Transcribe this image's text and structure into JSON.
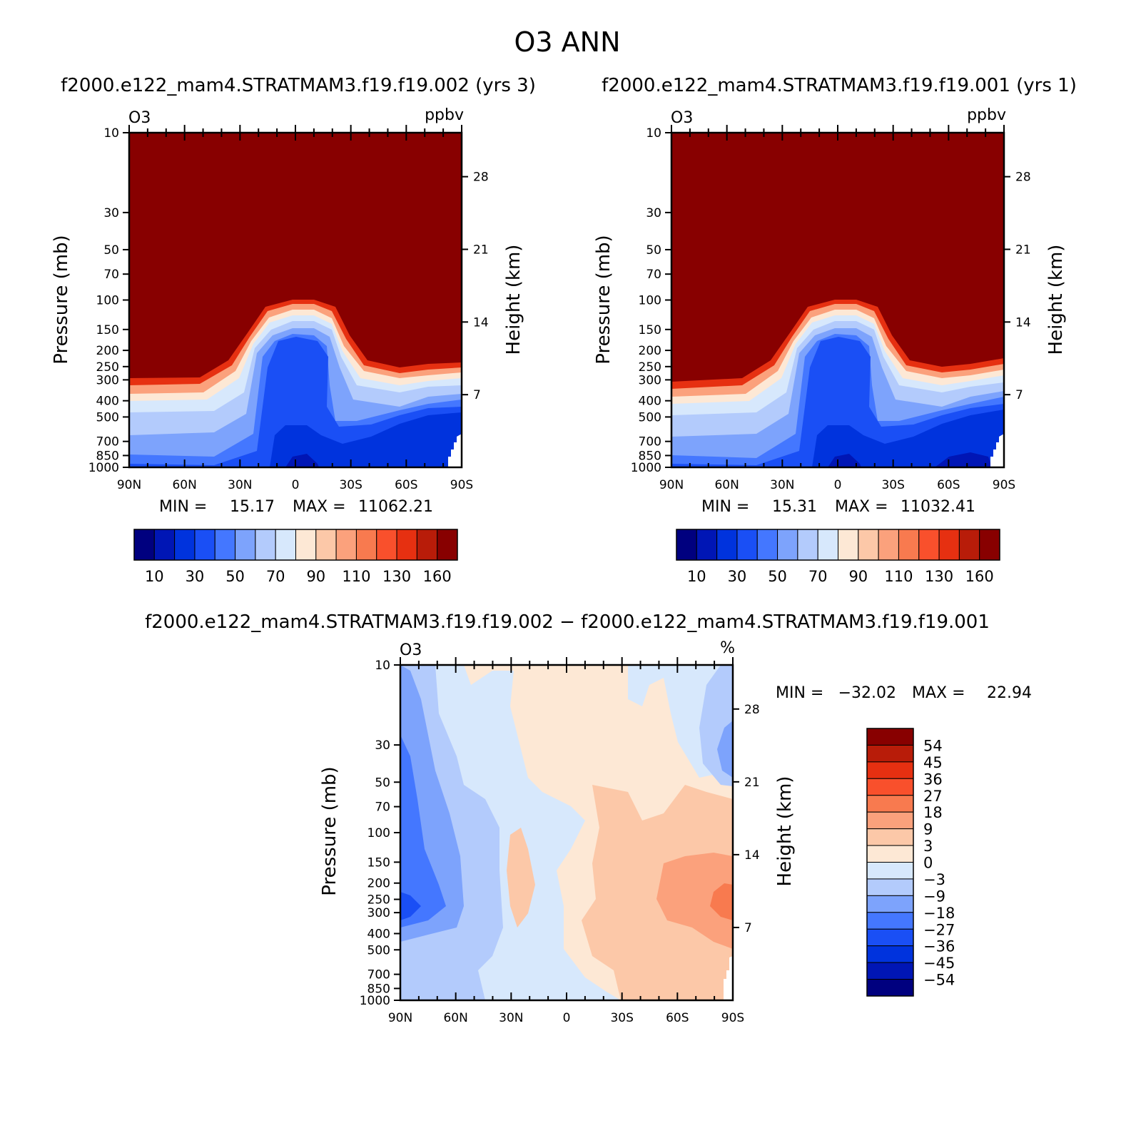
{
  "figure": {
    "title": "O3 ANN"
  },
  "colors": {
    "ppbv_scale": [
      "#00007f",
      "#0016b5",
      "#0033dd",
      "#1a4ff5",
      "#4477ff",
      "#7da3fc",
      "#b3cbfc",
      "#d7e8fc",
      "#fde8d5",
      "#fcc8a8",
      "#fba17c",
      "#f87a4f",
      "#f9502c",
      "#e63011",
      "#b81c09",
      "#880000"
    ],
    "diff_scale": [
      "#00007f",
      "#0016b5",
      "#0033dd",
      "#1a4ff5",
      "#4477ff",
      "#7da3fc",
      "#b3cbfc",
      "#d7e8fc",
      "#fde8d5",
      "#fcc8a8",
      "#fba17c",
      "#f87a4f",
      "#f9502c",
      "#e63011",
      "#b81c09",
      "#880000"
    ]
  },
  "chart_data": [
    {
      "type": "heatmap",
      "id": "panel1",
      "title": "f2000.e122_mam4.STRATMAM3.f19.f19.002 (yrs 3)",
      "variable": "O3",
      "units": "ppbv",
      "ylabel": "Pressure (mb)",
      "ylabel_right": "Height (km)",
      "x_ticks": [
        "90N",
        "60N",
        "30N",
        "0",
        "30S",
        "60S",
        "90S"
      ],
      "x_values": [
        90,
        60,
        30,
        0,
        -30,
        -60,
        -90
      ],
      "y_ticks": [
        10,
        30,
        50,
        70,
        100,
        150,
        200,
        250,
        300,
        400,
        500,
        700,
        850,
        1000
      ],
      "y_right_ticks": [
        28,
        21,
        14,
        7
      ],
      "ylim": [
        1000,
        10
      ],
      "min_label": "MIN =",
      "min_value": "15.17",
      "max_label": "MAX =",
      "max_value": "11062.21",
      "colorbar_labels": [
        "10",
        "30",
        "50",
        "70",
        "90",
        "110",
        "130",
        "160"
      ],
      "contour_levels": [
        5,
        10,
        20,
        30,
        40,
        50,
        60,
        70,
        80,
        90,
        100,
        110,
        120,
        130,
        140,
        160
      ]
    },
    {
      "type": "heatmap",
      "id": "panel2",
      "title": "f2000.e122_mam4.STRATMAM3.f19.f19.001 (yrs 1)",
      "variable": "O3",
      "units": "ppbv",
      "ylabel": "Pressure (mb)",
      "ylabel_right": "Height (km)",
      "x_ticks": [
        "90N",
        "60N",
        "30N",
        "0",
        "30S",
        "60S",
        "90S"
      ],
      "x_values": [
        90,
        60,
        30,
        0,
        -30,
        -60,
        -90
      ],
      "y_ticks": [
        10,
        30,
        50,
        70,
        100,
        150,
        200,
        250,
        300,
        400,
        500,
        700,
        850,
        1000
      ],
      "y_right_ticks": [
        28,
        21,
        14,
        7
      ],
      "ylim": [
        1000,
        10
      ],
      "min_label": "MIN =",
      "min_value": "15.31",
      "max_label": "MAX =",
      "max_value": "11032.41",
      "colorbar_labels": [
        "10",
        "30",
        "50",
        "70",
        "90",
        "110",
        "130",
        "160"
      ],
      "contour_levels": [
        5,
        10,
        20,
        30,
        40,
        50,
        60,
        70,
        80,
        90,
        100,
        110,
        120,
        130,
        140,
        160
      ]
    },
    {
      "type": "heatmap",
      "id": "panel3",
      "title": "f2000.e122_mam4.STRATMAM3.f19.f19.002 - f2000.e122_mam4.STRATMAM3.f19.f19.001",
      "variable": "O3",
      "units": "%",
      "ylabel": "Pressure (mb)",
      "ylabel_right": "Height (km)",
      "x_ticks": [
        "90N",
        "60N",
        "30N",
        "0",
        "30S",
        "60S",
        "90S"
      ],
      "x_values": [
        90,
        60,
        30,
        0,
        -30,
        -60,
        -90
      ],
      "y_ticks": [
        10,
        30,
        50,
        70,
        100,
        150,
        200,
        250,
        300,
        400,
        500,
        700,
        850,
        1000
      ],
      "y_right_ticks": [
        28,
        21,
        14,
        7
      ],
      "ylim": [
        1000,
        10
      ],
      "min_label": "MIN =",
      "min_value": "-32.02",
      "max_label": "MAX =",
      "max_value": "22.94",
      "colorbar_labels": [
        "54",
        "45",
        "36",
        "27",
        "18",
        "9",
        "3",
        "0",
        "-3",
        "-9",
        "-18",
        "-27",
        "-36",
        "-45",
        "-54"
      ],
      "contour_levels": [
        -54,
        -45,
        -36,
        -27,
        -18,
        -9,
        -3,
        0,
        3,
        9,
        18,
        27,
        36,
        45,
        54
      ]
    }
  ]
}
